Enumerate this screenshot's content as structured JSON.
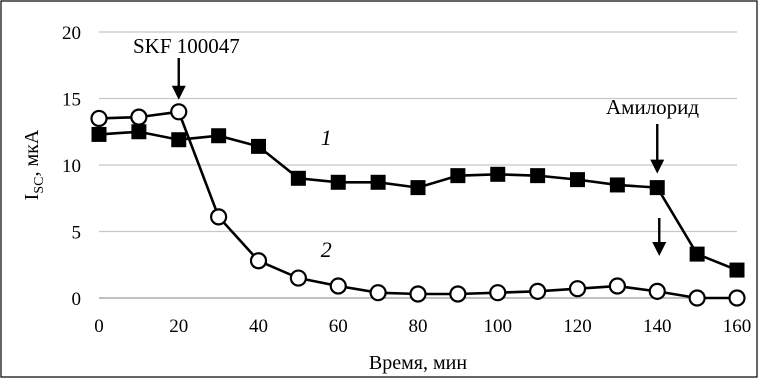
{
  "chart_data": {
    "type": "line",
    "title": "",
    "xlabel": "Время, мин",
    "ylabel_main": "I",
    "ylabel_sub": "SC",
    "ylabel_rest": ", мкА",
    "xlim": [
      0,
      160
    ],
    "ylim": [
      0,
      20
    ],
    "xticks": [
      0,
      20,
      40,
      60,
      80,
      100,
      120,
      140,
      160
    ],
    "yticks": [
      0,
      5,
      10,
      15,
      20
    ],
    "grid": "horizontal",
    "series": [
      {
        "label": "1",
        "marker": "filled-square",
        "x": [
          0,
          10,
          20,
          30,
          40,
          50,
          60,
          70,
          80,
          90,
          100,
          110,
          120,
          130,
          140,
          150,
          160
        ],
        "y": [
          12.3,
          12.5,
          11.9,
          12.2,
          11.4,
          9.0,
          8.7,
          8.7,
          8.3,
          9.2,
          9.3,
          9.2,
          8.9,
          8.5,
          8.3,
          3.3,
          2.1
        ]
      },
      {
        "label": "2",
        "marker": "open-circle",
        "x": [
          0,
          10,
          20,
          30,
          40,
          50,
          60,
          70,
          80,
          90,
          100,
          110,
          120,
          130,
          140,
          150,
          160
        ],
        "y": [
          13.5,
          13.6,
          14.0,
          6.1,
          2.8,
          1.5,
          0.9,
          0.4,
          0.3,
          0.3,
          0.4,
          0.5,
          0.7,
          0.9,
          0.5,
          0.0,
          0.0
        ]
      }
    ],
    "annotations": [
      {
        "text": "SKF 100047",
        "arrow_x": 20,
        "arrow_y": 14.0
      },
      {
        "text": "Амилорид",
        "arrow_x": 140,
        "arrow_y": 8.3
      }
    ],
    "extra_arrow": {
      "x": 140,
      "y": 0.5
    }
  }
}
